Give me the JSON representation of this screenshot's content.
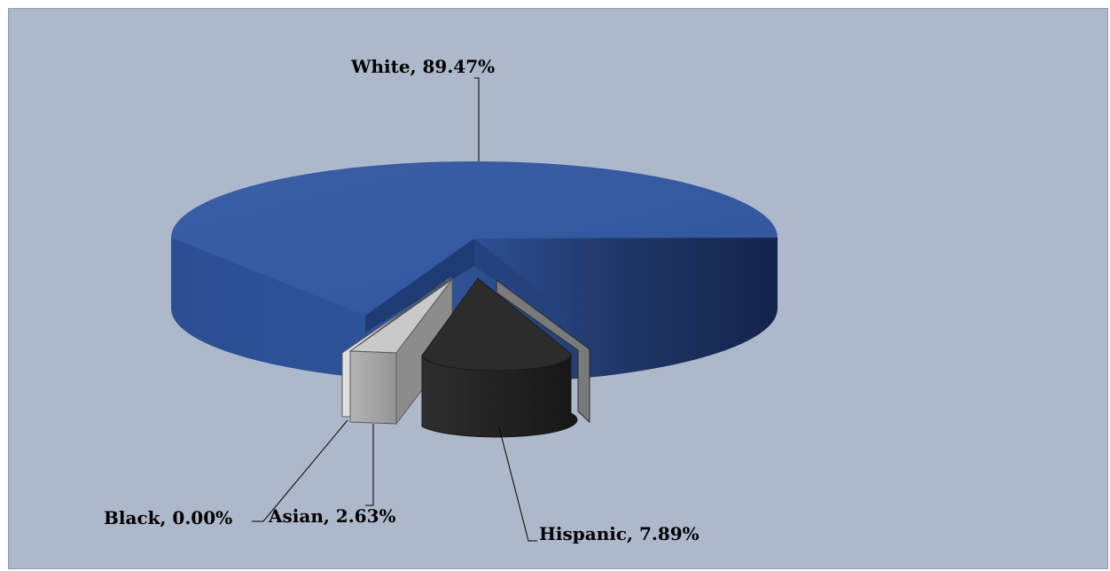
{
  "chart_data": {
    "type": "pie",
    "style": "3d-exploded",
    "categories": [
      "White",
      "Asian",
      "Black",
      "Hispanic"
    ],
    "values": [
      89.47,
      2.63,
      0.0,
      7.89
    ],
    "labels": [
      "White, 89.47%",
      "Asian, 2.63%",
      "Black, 0.00%",
      "Hispanic, 7.89%"
    ],
    "colors": {
      "White": "#345aa0",
      "Asian": "#a6a6a6",
      "Black": "#d6d6d6",
      "Hispanic": "#2a2a2a",
      "background": "#adb9ca"
    },
    "title": "",
    "legend": "none"
  }
}
